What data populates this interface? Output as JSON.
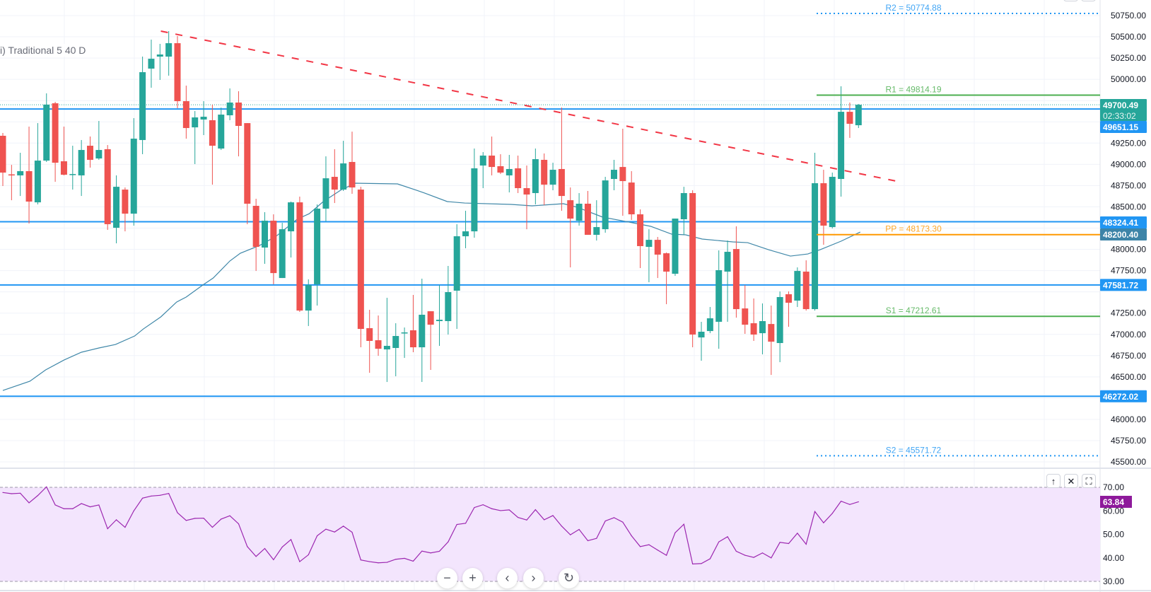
{
  "legend": {
    "text": "i) Traditional 5 40 D"
  },
  "colors": {
    "up": "#26a69a",
    "down": "#ef5350",
    "trendline": "#f23645",
    "level": "#2196f3",
    "moving_average": "#3f87a8",
    "ma_label": "#3d84a8",
    "pivot_r1_s1": "#4caf50",
    "pivot_pp": "#ff9800",
    "pivot_r2_s2": "#2196f3",
    "rsi_line": "#9c27b0",
    "rsi_band": "#f3e5fd",
    "rsi_label": "#8e1a9b",
    "grid": "#f0f3fa",
    "axis_text": "#131722"
  },
  "chart_data": [
    {
      "type": "candlestick",
      "ylim": [
        45500,
        50750
      ],
      "grid": true,
      "y_ticks": [
        "50750.00",
        "50500.00",
        "50250.00",
        "50000.00",
        "49250.00",
        "49000.00",
        "48750.00",
        "48500.00",
        "48000.00",
        "47750.00",
        "47250.00",
        "47000.00",
        "46750.00",
        "46500.00",
        "46000.00",
        "45750.00",
        "45500.00"
      ],
      "candles_ohlc": [
        [
          49336,
          49369,
          48745,
          48903
        ],
        [
          48882,
          48994,
          48578,
          48870
        ],
        [
          48870,
          49136,
          48628,
          48920
        ],
        [
          48920,
          49444,
          48304,
          48562
        ],
        [
          48553,
          49485,
          48529,
          49044
        ],
        [
          49044,
          49835,
          49028,
          49702
        ],
        [
          49718,
          49735,
          48795,
          49019
        ],
        [
          49036,
          49444,
          48870,
          48878
        ],
        [
          48878,
          49219,
          48703,
          48886
        ],
        [
          48870,
          49286,
          48628,
          49169
        ],
        [
          49219,
          49327,
          48961,
          49053
        ],
        [
          49069,
          49510,
          49053,
          49169
        ],
        [
          49178,
          49227,
          48229,
          48296
        ],
        [
          48254,
          48870,
          48071,
          48736
        ],
        [
          48703,
          48728,
          48212,
          48420
        ],
        [
          48420,
          49544,
          48279,
          49302
        ],
        [
          49286,
          50267,
          49119,
          50084
        ],
        [
          50126,
          50467,
          49901,
          50242
        ],
        [
          50267,
          50417,
          49993,
          50292
        ],
        [
          50267,
          50567,
          50043,
          50425
        ],
        [
          50425,
          50509,
          49660,
          49743
        ],
        [
          49743,
          49926,
          49302,
          49427
        ],
        [
          49435,
          49627,
          49003,
          49552
        ],
        [
          49527,
          49743,
          49344,
          49560
        ],
        [
          49519,
          49702,
          48761,
          49219
        ],
        [
          49186,
          49668,
          49169,
          49585
        ],
        [
          49577,
          49893,
          49519,
          49727
        ],
        [
          49727,
          49860,
          49094,
          49452
        ],
        [
          49485,
          49485,
          48296,
          48537
        ],
        [
          48512,
          48595,
          47746,
          48029
        ],
        [
          48021,
          48437,
          47830,
          48337
        ],
        [
          48337,
          48412,
          47589,
          47721
        ],
        [
          47663,
          48312,
          47663,
          48237
        ],
        [
          48212,
          48562,
          47904,
          48553
        ],
        [
          48553,
          48620,
          47264,
          47280
        ],
        [
          47280,
          47647,
          47098,
          47580
        ],
        [
          47589,
          48529,
          47339,
          48479
        ],
        [
          48479,
          49094,
          48329,
          48836
        ],
        [
          48853,
          49178,
          48545,
          48703
        ],
        [
          48703,
          49277,
          48687,
          49011
        ],
        [
          49028,
          49385,
          48653,
          48728
        ],
        [
          48703,
          48736,
          46848,
          47064
        ],
        [
          47073,
          47289,
          46548,
          46923
        ],
        [
          46931,
          47222,
          46748,
          46831
        ],
        [
          46823,
          47430,
          46440,
          46865
        ],
        [
          46840,
          47131,
          46507,
          46981
        ],
        [
          47014,
          47081,
          46723,
          47023
        ],
        [
          47048,
          47464,
          46790,
          46848
        ],
        [
          46848,
          47655,
          46440,
          47231
        ],
        [
          47272,
          47272,
          46582,
          47114
        ],
        [
          47156,
          47580,
          46865,
          47172
        ],
        [
          47156,
          47805,
          46998,
          47497
        ],
        [
          47514,
          48296,
          47064,
          48154
        ],
        [
          48154,
          48454,
          48013,
          48212
        ],
        [
          48212,
          49186,
          48137,
          48953
        ],
        [
          48986,
          49144,
          48720,
          49103
        ],
        [
          49103,
          49327,
          48870,
          48969
        ],
        [
          48978,
          49119,
          48886,
          48903
        ],
        [
          48870,
          49111,
          48670,
          48945
        ],
        [
          48953,
          49103,
          48662,
          48720
        ],
        [
          48720,
          48986,
          48237,
          48645
        ],
        [
          48662,
          49186,
          48529,
          49061
        ],
        [
          49053,
          49128,
          48520,
          48761
        ],
        [
          48761,
          49019,
          48695,
          48936
        ],
        [
          48945,
          49668,
          48454,
          48628
        ],
        [
          48578,
          48728,
          47788,
          48362
        ],
        [
          48337,
          48662,
          48279,
          48537
        ],
        [
          48537,
          48687,
          48171,
          48171
        ],
        [
          48171,
          48578,
          48104,
          48262
        ],
        [
          48237,
          48853,
          48196,
          48811
        ],
        [
          48828,
          49053,
          48695,
          48936
        ],
        [
          48969,
          49419,
          48395,
          48803
        ],
        [
          48786,
          48920,
          48346,
          48412
        ],
        [
          48412,
          48470,
          47780,
          48038
        ],
        [
          48029,
          48237,
          47613,
          48112
        ],
        [
          48112,
          48146,
          47663,
          47938
        ],
        [
          47954,
          47963,
          47355,
          47738
        ],
        [
          47713,
          48362,
          47688,
          48362
        ],
        [
          48354,
          48736,
          48171,
          48662
        ],
        [
          48662,
          48695,
          46848,
          46998
        ],
        [
          46964,
          47148,
          46690,
          47031
        ],
        [
          47039,
          47322,
          47014,
          47189
        ],
        [
          47148,
          47988,
          46831,
          47755
        ],
        [
          47738,
          48104,
          47148,
          47971
        ],
        [
          48004,
          48271,
          47197,
          47297
        ],
        [
          47305,
          47580,
          47006,
          47114
        ],
        [
          47131,
          47422,
          46923,
          46998
        ],
        [
          47014,
          47364,
          46765,
          47156
        ],
        [
          47122,
          47339,
          46523,
          46914
        ],
        [
          46898,
          47505,
          46673,
          47439
        ],
        [
          47472,
          47505,
          47089,
          47372
        ],
        [
          47397,
          47788,
          47322,
          47746
        ],
        [
          47738,
          47871,
          47280,
          47297
        ],
        [
          47297,
          49136,
          47280,
          48778
        ],
        [
          48778,
          48936,
          48054,
          48279
        ],
        [
          48262,
          48903,
          48246,
          48853
        ],
        [
          48828,
          49918,
          48620,
          49618
        ],
        [
          49618,
          49727,
          49311,
          49477
        ],
        [
          49460,
          49710,
          49427,
          49700.49
        ]
      ],
      "moving_average": [
        [
          0,
          46340
        ],
        [
          3.1,
          46449
        ],
        [
          4.9,
          46582
        ],
        [
          7,
          46698
        ],
        [
          9,
          46790
        ],
        [
          11,
          46840
        ],
        [
          12.9,
          46881
        ],
        [
          15.1,
          46981
        ],
        [
          16.1,
          47064
        ],
        [
          18.1,
          47206
        ],
        [
          19.9,
          47380
        ],
        [
          21,
          47439
        ],
        [
          22.9,
          47580
        ],
        [
          24.1,
          47663
        ],
        [
          26,
          47863
        ],
        [
          27.2,
          47954
        ],
        [
          29.4,
          48046
        ],
        [
          31.3,
          48154
        ],
        [
          33.7,
          48354
        ],
        [
          35.1,
          48420
        ],
        [
          36.7,
          48562
        ],
        [
          38.8,
          48703
        ],
        [
          40.4,
          48778
        ],
        [
          45.2,
          48770
        ],
        [
          47.4,
          48695
        ],
        [
          48.3,
          48662
        ],
        [
          50.9,
          48562
        ],
        [
          52.9,
          48545
        ],
        [
          58.2,
          48529
        ],
        [
          60.6,
          48512
        ],
        [
          64.2,
          48537
        ],
        [
          65.8,
          48495
        ],
        [
          68.7,
          48379
        ],
        [
          70.9,
          48337
        ],
        [
          74.2,
          48271
        ],
        [
          76.6,
          48179
        ],
        [
          78.2,
          48171
        ],
        [
          80.1,
          48121
        ],
        [
          83.6,
          48088
        ],
        [
          85.3,
          48079
        ],
        [
          87.7,
          47996
        ],
        [
          90.2,
          47921
        ],
        [
          92.2,
          47946
        ],
        [
          93.6,
          47996
        ],
        [
          96,
          48096
        ],
        [
          98.2,
          48204
        ]
      ],
      "trendline": [
        [
          18.1,
          50567
        ],
        [
          102.3,
          48803
        ]
      ],
      "horizontal_levels": [
        {
          "value": 49651.15,
          "label": "49651.15"
        },
        {
          "value": 48324.41,
          "label": "48324.41"
        },
        {
          "value": 47581.72,
          "label": "47581.72"
        },
        {
          "value": 46272.02,
          "label": "46272.02"
        }
      ],
      "pivots": [
        {
          "key": "R2",
          "value": 50774.88,
          "label": "R2 = 50774.88"
        },
        {
          "key": "R1",
          "value": 49814.19,
          "label": "R1 = 49814.19"
        },
        {
          "key": "PP",
          "value": 48173.3,
          "label": "PP = 48173.30"
        },
        {
          "key": "S1",
          "value": 47212.61,
          "label": "S1 = 47212.61"
        },
        {
          "key": "S2",
          "value": 45571.72,
          "label": "S2 = 45571.72"
        }
      ],
      "pivot_start_index": 93.2,
      "last_price": {
        "value": 49700.49,
        "label": "49700.49",
        "countdown": "02:33:02"
      },
      "ma_last": {
        "value": 48200.4,
        "label": "48200.40"
      }
    },
    {
      "type": "line",
      "ylim": [
        30,
        70
      ],
      "band": [
        30,
        70
      ],
      "y_ticks": [
        "70.00",
        "60.00",
        "50.00",
        "40.00",
        "30.00"
      ],
      "values": [
        67.8,
        67.3,
        67.5,
        63.4,
        66.5,
        70.2,
        62.5,
        60.9,
        60.9,
        63.1,
        61.7,
        62.5,
        52.4,
        56.2,
        53,
        60,
        65.4,
        66.3,
        66.6,
        67.4,
        59.2,
        55.9,
        56.8,
        56.9,
        53,
        56.5,
        57.9,
        54.5,
        44.8,
        40.6,
        44,
        39.2,
        44.6,
        47.8,
        38.4,
        41.3,
        49.4,
        52.2,
        51,
        53.5,
        50.9,
        39.1,
        38.4,
        37.9,
        38.1,
        39.4,
        39.8,
        38.6,
        42.9,
        42.1,
        42.8,
        46.8,
        54.2,
        54.7,
        61.4,
        62.6,
        60.9,
        60.1,
        60.4,
        57.2,
        56.1,
        60.5,
        56.2,
        58,
        53.5,
        49.8,
        52.1,
        47.3,
        48.3,
        55.7,
        57.1,
        55.2,
        49.4,
        44.8,
        45.6,
        43.3,
        41.1,
        50.7,
        54.3,
        37.4,
        37.6,
        39.6,
        46.8,
        49,
        42.8,
        41.1,
        40.2,
        42.1,
        40,
        46.6,
        46.1,
        50.5,
        45.8,
        59.7,
        54.9,
        58.9,
        64.1,
        62.7,
        63.84
      ],
      "last": {
        "value": 63.84,
        "label": "63.84"
      }
    }
  ],
  "rsi_pane_buttons": [
    {
      "name": "move-pane-up-button",
      "glyph": "↑"
    },
    {
      "name": "close-pane-button",
      "glyph": "✕"
    },
    {
      "name": "maximize-pane-button",
      "glyph": "⛶"
    }
  ],
  "navigation": [
    {
      "name": "zoom-out-button",
      "glyph": "−"
    },
    {
      "name": "zoom-in-button",
      "glyph": "+"
    },
    {
      "name": "scroll-left-button",
      "glyph": "‹"
    },
    {
      "name": "scroll-right-button",
      "glyph": "›"
    },
    {
      "name": "reset-chart-button",
      "glyph": "↻"
    }
  ]
}
